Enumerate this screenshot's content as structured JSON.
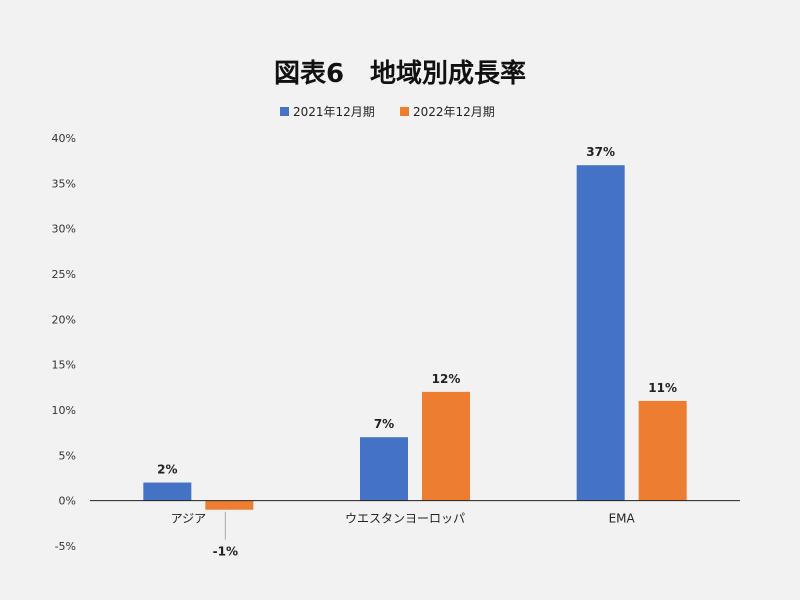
{
  "chart_data": {
    "type": "bar",
    "title": "図表6　地域別成長率",
    "categories": [
      "アジア",
      "ウエスタンヨーロッパ",
      "EMA"
    ],
    "series": [
      {
        "name": "2021年12月期",
        "values": [
          2,
          7,
          37
        ],
        "labels": [
          "2%",
          "7%",
          "37%"
        ],
        "color": "#4472c4"
      },
      {
        "name": "2022年12月期",
        "values": [
          -1,
          12,
          11
        ],
        "labels": [
          "-1%",
          "12%",
          "11%"
        ],
        "color": "#ed7d31"
      }
    ],
    "ylim": [
      -5,
      40
    ],
    "yticks": [
      40,
      35,
      30,
      25,
      20,
      15,
      10,
      5,
      0,
      -5
    ],
    "ytick_labels": [
      "40%",
      "35%",
      "30%",
      "25%",
      "20%",
      "15%",
      "10%",
      "5%",
      "0%",
      "-5%"
    ],
    "legend_position": "top",
    "grid": false
  }
}
